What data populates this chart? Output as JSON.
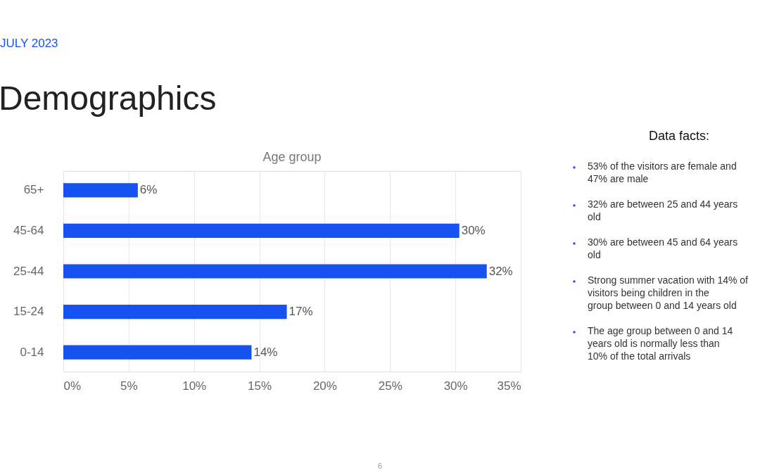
{
  "chart_data": {
    "type": "bar",
    "orientation": "horizontal",
    "title": "Age group",
    "categories": [
      "65+",
      "45-64",
      "25-44",
      "15-24",
      "0-14"
    ],
    "values": [
      5.7,
      30.3,
      32.4,
      17.1,
      14.4
    ],
    "value_labels": [
      "6%",
      "30%",
      "32%",
      "17%",
      "14%"
    ],
    "color": "#1652f0",
    "xlim": [
      0,
      35
    ],
    "xticks": [
      {
        "value": 0,
        "label": "0%"
      },
      {
        "value": 5,
        "label": "5%"
      },
      {
        "value": 10,
        "label": "10%"
      },
      {
        "value": 15,
        "label": "15%"
      },
      {
        "value": 20,
        "label": "20%"
      },
      {
        "value": 25,
        "label": "25%"
      },
      {
        "value": 30,
        "label": "30%"
      },
      {
        "value": 35,
        "label": "35%"
      }
    ],
    "grid": "x",
    "annotations": [
      "JULY 2023",
      "Demographics",
      "Data facts:",
      "53% of the visitors are female and 47% are male",
      "32% are between 25 and 44 years old",
      "30% are between 45 and 64 years old",
      "Strong summer vacation with 14% of visitors being children in the group between 0 and 14 years old",
      "The age group between 0 and 14 years old is normally less than 10% of the total arrivals",
      "6"
    ]
  }
}
